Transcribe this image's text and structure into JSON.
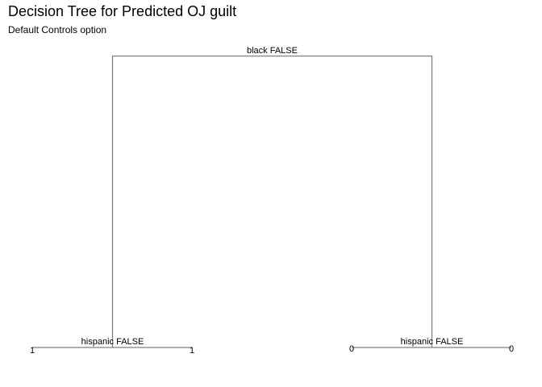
{
  "title": "Decision Tree for Predicted OJ guilt",
  "subtitle": "Default Controls option",
  "tree": {
    "root": {
      "split_label": "black FALSE",
      "children": [
        {
          "split_label": "hispanic FALSE",
          "leaves": [
            "1",
            "1"
          ]
        },
        {
          "split_label": "hispanic FALSE",
          "leaves": [
            "0",
            "0"
          ]
        }
      ]
    }
  },
  "colors": {
    "branch": "#7f7f7f",
    "text": "#000000",
    "background": "#ffffff"
  }
}
